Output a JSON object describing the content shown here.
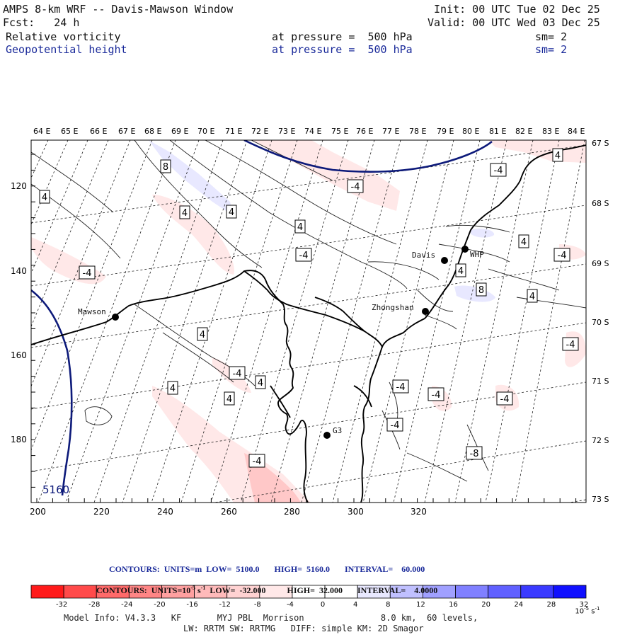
{
  "header": {
    "title": "AMPS 8-km WRF -- Davis-Mawson Window",
    "forecast": "Fcst:   24 h",
    "init": "Init: 00 UTC Tue 02 Dec 25",
    "valid": "Valid: 00 UTC Wed 03 Dec 25",
    "field1": {
      "name": "Relative vorticity",
      "pressure": "at pressure =  500 hPa",
      "smooth": "sm= 2"
    },
    "field2": {
      "name": "Geopotential height",
      "pressure": "at pressure =  500 hPa",
      "smooth": "sm= 2"
    }
  },
  "map": {
    "lon_labels": [
      "64 E",
      "65 E",
      "66 E",
      "67 E",
      "68 E",
      "69 E",
      "70 E",
      "71 E",
      "72 E",
      "73 E",
      "74 E",
      "75 E",
      "76 E",
      "77 E",
      "78 E",
      "79 E",
      "80 E",
      "81 E",
      "82 E",
      "83 E",
      "84 E"
    ],
    "lat_labels": [
      "67 S",
      "68 S",
      "69 S",
      "70 S",
      "71 S",
      "72 S",
      "73 S"
    ],
    "x_ticks": [
      "200",
      "220",
      "240",
      "260",
      "280",
      "300",
      "320"
    ],
    "y_ticks": [
      "120",
      "140",
      "160",
      "180"
    ],
    "stations": [
      "Mawson",
      "Davis",
      "WHP",
      "Zhongshan",
      "G3"
    ],
    "height_contour_label": "5160",
    "vort_labels": [
      "8",
      "-4",
      "4",
      "4",
      "4",
      "4",
      "-4",
      "4",
      "-4",
      "-4",
      "4",
      "4",
      "-4",
      "8",
      "4",
      "4",
      "-4",
      "-4",
      "4",
      "4",
      "4",
      "-4",
      "-4",
      "-4",
      "-4",
      "-8",
      "-4"
    ]
  },
  "colors": {
    "height_contour": "#0d1a7a",
    "neg_shade": "#ff0000",
    "pos_shade": "#0000ff"
  },
  "footer": {
    "contours_height": "CONTOURS:  UNITS=m  LOW=  5100.0       HIGH=  5160.0       INTERVAL=    60.000",
    "contours_vort": "CONTOURS:  UNITS=10",
    "contours_vort_exp": "-5",
    "contours_vort_unit": " s",
    "contours_vort_unit_exp": "-1",
    "contours_vort_rest": "  LOW=  -32.000          HIGH=  32.000       INTERVAL=    4.0000",
    "colorbar_labels": [
      "-32",
      "-28",
      "-24",
      "-20",
      "-16",
      "-12",
      "-8",
      "-4",
      "0",
      "4",
      "8",
      "12",
      "16",
      "20",
      "24",
      "28",
      "32"
    ],
    "colorbar_unit": "10",
    "colorbar_unit_exp": "-5",
    "colorbar_unit_s": " s",
    "colorbar_unit_s_exp": "-1",
    "colorbar_colors": [
      "#ff1a1a",
      "#ff4a4a",
      "#ff6a6a",
      "#ff8585",
      "#ffa0a0",
      "#ffbaba",
      "#ffd2d2",
      "#ffe8e8",
      "#ffffff",
      "#ffffff",
      "#e8e8ff",
      "#c0c0ff",
      "#a0a0ff",
      "#8080ff",
      "#6060ff",
      "#3a3aff",
      "#1010ff"
    ],
    "model_info1": "Model Info: V4.3.3   KF       MYJ PBL  Morrison               8.0 km,  60 levels,",
    "model_info2": "LW: RRTM SW: RRTMG   DIFF: simple KM: 2D Smagor"
  }
}
